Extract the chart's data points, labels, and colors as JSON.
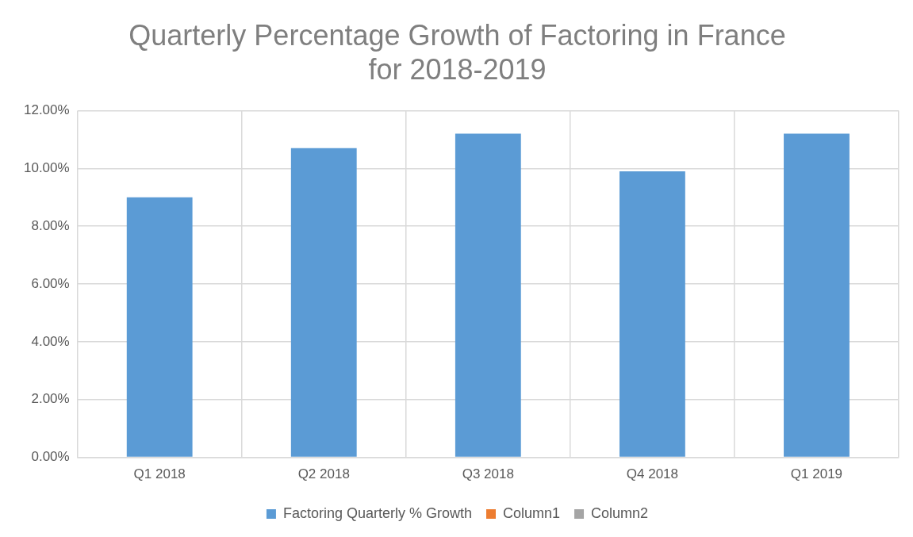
{
  "chart_data": {
    "type": "bar",
    "title": "Quarterly Percentage Growth of Factoring in France\nfor 2018-2019",
    "categories": [
      "Q1 2018",
      "Q2 2018",
      "Q3 2018",
      "Q4 2018",
      "Q1 2019"
    ],
    "series": [
      {
        "name": "Factoring Quarterly % Growth",
        "color": "#5b9bd5",
        "values": [
          9.0,
          10.7,
          11.2,
          9.9,
          11.2
        ]
      },
      {
        "name": "Column1",
        "color": "#ed7d31",
        "values": [
          null,
          null,
          null,
          null,
          null
        ]
      },
      {
        "name": "Column2",
        "color": "#a5a5a5",
        "values": [
          null,
          null,
          null,
          null,
          null
        ]
      }
    ],
    "ylim": [
      0,
      12
    ],
    "yticks": [
      {
        "value": 0,
        "label": "0.00%"
      },
      {
        "value": 2,
        "label": "2.00%"
      },
      {
        "value": 4,
        "label": "4.00%"
      },
      {
        "value": 6,
        "label": "6.00%"
      },
      {
        "value": 8,
        "label": "8.00%"
      },
      {
        "value": 10,
        "label": "10.00%"
      },
      {
        "value": 12,
        "label": "12.00%"
      }
    ],
    "grid": true,
    "legend": "bottom"
  }
}
